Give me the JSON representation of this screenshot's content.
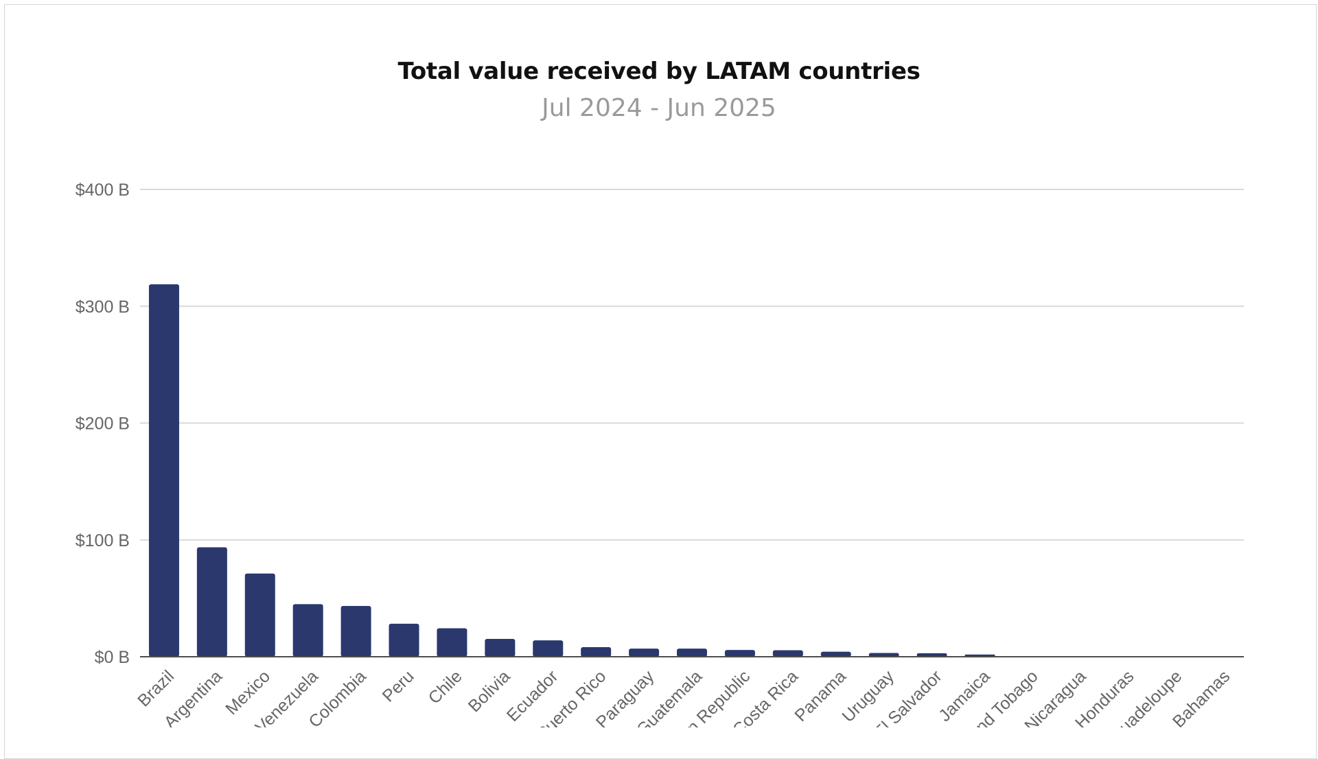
{
  "chart_data": {
    "type": "bar",
    "title": "Total value received by LATAM countries",
    "subtitle": "Jul 2024 - Jun 2025",
    "xlabel": "",
    "ylabel": "",
    "ylim": [
      0,
      400
    ],
    "y_ticks": [
      0,
      100,
      200,
      300,
      400
    ],
    "y_tick_labels": [
      "$0 B",
      "$100 B",
      "$200 B",
      "$300 B",
      "$400 B"
    ],
    "grid": true,
    "legend": "none",
    "categories": [
      "Brazil",
      "Argentina",
      "Mexico",
      "Venezuela",
      "Colombia",
      "Peru",
      "Chile",
      "Bolivia",
      "Ecuador",
      "Puerto Rico",
      "Paraguay",
      "Guatemala",
      "Dominican Republic",
      "Costa Rica",
      "Panama",
      "Uruguay",
      "El Salvador",
      "Jamaica",
      "Trinidad and Tobago",
      "Nicaragua",
      "Honduras",
      "Guadeloupe",
      "Bahamas"
    ],
    "values": [
      318.8,
      93.7,
      71.2,
      45.0,
      43.5,
      28.3,
      24.4,
      15.3,
      14.0,
      8.2,
      7.0,
      7.0,
      5.8,
      5.6,
      4.3,
      3.2,
      3.0,
      1.9,
      0.6,
      0.5,
      0.4,
      0.2,
      0.1
    ],
    "colors": {
      "bar": "#2b386e",
      "grid": "#d9d9d9",
      "axis": "#4d4d4d",
      "title": "#111111",
      "subtitle": "#9a9a9a",
      "tick": "#666666"
    }
  }
}
